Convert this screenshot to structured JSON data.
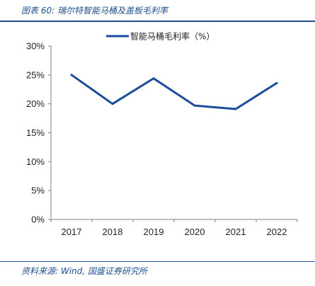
{
  "caption": "图表 60:  瑞尔特智能马桶及盖板毛利率",
  "source": "资料来源: Wind, 国盛证券研究所",
  "colors": {
    "line": "#1a4b9c",
    "axis": "#7f7f7f",
    "caption": "#1f4e8c"
  },
  "chart_data": {
    "type": "line",
    "categories": [
      "2017",
      "2018",
      "2019",
      "2020",
      "2021",
      "2022"
    ],
    "series": [
      {
        "name": "智能马桶毛利率（%）",
        "values": [
          25.0,
          20.0,
          24.4,
          19.7,
          19.1,
          23.6
        ]
      }
    ],
    "ylim": [
      0,
      30
    ],
    "yticks": [
      "0%",
      "5%",
      "10%",
      "15%",
      "20%",
      "25%",
      "30%"
    ],
    "legend_position": "top-center",
    "grid": false
  }
}
